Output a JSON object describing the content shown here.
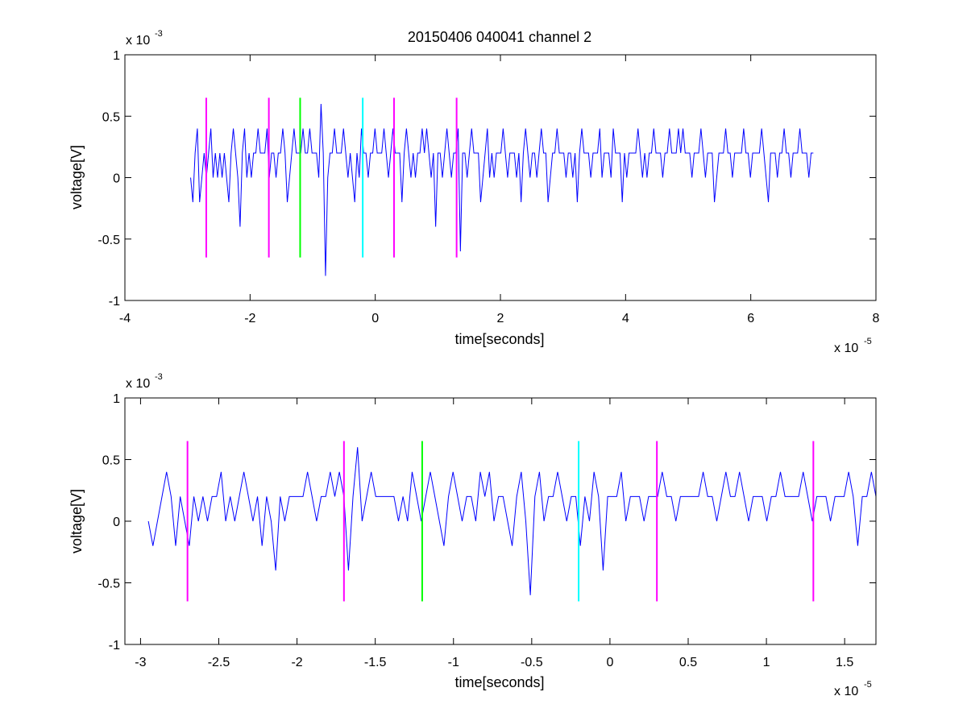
{
  "chart_data": [
    {
      "type": "line",
      "title": "20150406 040041 channel 2",
      "xlabel": "time[seconds]",
      "ylabel": "voltage[V]",
      "x_multiplier": "x 10",
      "x_exponent": "-5",
      "y_multiplier": "x 10",
      "y_exponent": "-3",
      "xlim": [
        -4,
        8
      ],
      "ylim": [
        -1,
        1
      ],
      "xticks": [
        "-4",
        "-2",
        "0",
        "2",
        "4",
        "6",
        "8"
      ],
      "yticks": [
        "-1",
        "-0.5",
        "0",
        "0.5",
        "1"
      ],
      "grid": false,
      "signal": {
        "color": "#0000ff",
        "x_start": -2.95,
        "x_end": 7.0
      },
      "markers": [
        {
          "x": -2.7,
          "ymin": -0.65,
          "ymax": 0.65,
          "color": "#ff00ff"
        },
        {
          "x": -1.7,
          "ymin": -0.65,
          "ymax": 0.65,
          "color": "#ff00ff"
        },
        {
          "x": -1.2,
          "ymin": -0.65,
          "ymax": 0.65,
          "color": "#00ff00"
        },
        {
          "x": -0.2,
          "ymin": -0.65,
          "ymax": 0.65,
          "color": "#00ffff"
        },
        {
          "x": 0.3,
          "ymin": -0.65,
          "ymax": 0.65,
          "color": "#ff00ff"
        },
        {
          "x": 1.3,
          "ymin": -0.65,
          "ymax": 0.65,
          "color": "#ff00ff"
        }
      ],
      "values": [
        0,
        -0.2,
        0.2,
        0.4,
        -0.2,
        0,
        0.2,
        0,
        0.2,
        0.4,
        0,
        0.2,
        0,
        0.2,
        0,
        0.2,
        0,
        -0.2,
        0.2,
        0.4,
        0.2,
        0,
        -0.4,
        0.2,
        0.4,
        0,
        0.2,
        0,
        0.2,
        0.2,
        0.4,
        0.2,
        0.2,
        0.2,
        0.4,
        0,
        0.2,
        0.2,
        0,
        0.2,
        0.2,
        0.4,
        0.2,
        -0.2,
        0,
        0.2,
        0.4,
        0.2,
        0.2,
        0.2,
        0.4,
        0.2,
        0.2,
        0.4,
        0.2,
        0.2,
        0.2,
        0,
        0.6,
        0.2,
        -0.8,
        0,
        0.2,
        0.2,
        0.4,
        0.2,
        0.2,
        0.2,
        0.4,
        0.2,
        0,
        0.2,
        0,
        -0.2,
        0.2,
        0,
        0.4,
        0.2,
        0.2,
        0,
        0.2,
        0.2,
        0.4,
        0.2,
        0.2,
        0.2,
        0.4,
        0.2,
        0,
        0.2,
        0.4,
        0.2,
        0.2,
        0.2,
        -0.2,
        0.2,
        0.4,
        0.2,
        0,
        0.2,
        0,
        0.2,
        0.2,
        0.4,
        0.2,
        0.4,
        0.2,
        0,
        0.2,
        -0.4,
        0.2,
        0.2,
        0,
        0.2,
        0.4,
        0.2,
        0,
        0.2,
        0.2,
        0.4,
        -0.6,
        0.2,
        0.2,
        0,
        0.2,
        0.4,
        0.2,
        0.2,
        0.2,
        -0.2,
        0,
        0.2,
        0.4,
        0,
        0.2,
        0,
        0.2,
        0.2,
        0.2,
        0.4,
        0.2,
        0,
        0.2,
        0.2,
        0.2,
        0,
        0.2,
        -0.2,
        0.2,
        0.4,
        0.2,
        0,
        0.2,
        0.2,
        0,
        0.2,
        0.4,
        0.2,
        0.2,
        -0.2,
        0,
        0.2,
        0.2,
        0.4,
        0.2,
        0.2,
        0.2,
        0,
        0.2,
        0.2,
        0,
        0.2,
        -0.2,
        0.2,
        0.4,
        0.2,
        0.2,
        0.2,
        0,
        0.2,
        0.2,
        0.2,
        0.4,
        0,
        0.2,
        0.2,
        0.2,
        0,
        0.4,
        0.2,
        0.2,
        0.2,
        -0.2,
        0.2,
        0,
        0.2,
        0.2,
        0.2,
        0.2,
        0.4,
        0.2,
        0,
        0.2,
        0,
        0.2,
        0.2,
        0.4,
        0.2,
        0.2,
        0.2,
        0,
        0.2,
        0.2,
        0.4,
        0.2,
        0.2,
        0.2,
        0.4,
        0.2,
        0.4,
        0.2,
        0.2,
        0.2,
        0,
        0.2,
        0.2,
        0.2,
        0.4,
        0.2,
        0,
        0.2,
        0.2,
        0.2,
        -0.2,
        0,
        0.2,
        0.2,
        0.2,
        0.4,
        0.2,
        0.2,
        0,
        0.2,
        0.2,
        0.2,
        0.2,
        0.4,
        0.2,
        0.2,
        0,
        0.2,
        0.2,
        0.2,
        0.2,
        0.4,
        0.2,
        0,
        -0.2,
        0.2,
        0.2,
        0.2,
        0,
        0.2,
        0.2,
        0.4,
        0.2,
        0.2,
        0,
        0.2,
        0.2,
        0.2,
        0.4,
        0.2,
        0.2,
        0.2,
        0,
        0.2,
        0.2
      ]
    },
    {
      "type": "line",
      "title": "",
      "xlabel": "time[seconds]",
      "ylabel": "voltage[V]",
      "x_multiplier": "x 10",
      "x_exponent": "-5",
      "y_multiplier": "x 10",
      "y_exponent": "-3",
      "xlim": [
        -3.1,
        1.7
      ],
      "ylim": [
        -1,
        1
      ],
      "xticks": [
        "-3",
        "-2.5",
        "-2",
        "-1.5",
        "-1",
        "-0.5",
        "0",
        "0.5",
        "1",
        "1.5"
      ],
      "xtick_values": [
        -3,
        -2.5,
        -2,
        -1.5,
        -1,
        -0.5,
        0,
        0.5,
        1,
        1.5
      ],
      "yticks": [
        "-1",
        "-0.5",
        "0",
        "0.5",
        "1"
      ],
      "grid": false,
      "signal": {
        "color": "#0000ff",
        "x_start": -2.95,
        "x_end": 1.7
      },
      "markers": [
        {
          "x": -2.7,
          "ymin": -0.65,
          "ymax": 0.65,
          "color": "#ff00ff"
        },
        {
          "x": -1.7,
          "ymin": -0.65,
          "ymax": 0.65,
          "color": "#ff00ff"
        },
        {
          "x": -1.2,
          "ymin": -0.65,
          "ymax": 0.65,
          "color": "#00ff00"
        },
        {
          "x": -0.2,
          "ymin": -0.65,
          "ymax": 0.65,
          "color": "#00ffff"
        },
        {
          "x": 0.3,
          "ymin": -0.65,
          "ymax": 0.65,
          "color": "#ff00ff"
        },
        {
          "x": 1.3,
          "ymin": -0.65,
          "ymax": 0.65,
          "color": "#ff00ff"
        }
      ],
      "values": [
        0,
        -0.2,
        0,
        0.2,
        0.4,
        0.2,
        -0.2,
        0.2,
        0,
        -0.2,
        0.2,
        0,
        0.2,
        0,
        0.2,
        0.2,
        0.4,
        0,
        0.2,
        0,
        0.2,
        0.4,
        0.2,
        0,
        0.2,
        -0.2,
        0.2,
        0,
        -0.4,
        0.2,
        0,
        0.2,
        0.2,
        0.2,
        0.2,
        0.4,
        0.2,
        0,
        0.2,
        0.2,
        0.4,
        0.2,
        0.4,
        0.2,
        -0.4,
        0.2,
        0.6,
        0,
        0.2,
        0.4,
        0.2,
        0.2,
        0.2,
        0.2,
        0.2,
        0,
        0.2,
        0,
        0.4,
        0.2,
        0,
        0.2,
        0.4,
        0.2,
        0,
        -0.2,
        0.2,
        0.4,
        0.2,
        0,
        0.2,
        0.2,
        0,
        0.4,
        0.2,
        0.4,
        0,
        0.2,
        0.2,
        0,
        -0.2,
        0.2,
        0.4,
        0,
        -0.6,
        0.2,
        0.4,
        0,
        0.2,
        0.2,
        0.4,
        0.2,
        0,
        0.2,
        0.2,
        -0.2,
        0.2,
        0,
        0.4,
        0.2,
        -0.4,
        0.2,
        0.2,
        0.2,
        0.4,
        0,
        0.2,
        0.2,
        0.2,
        0,
        0.2,
        0.2,
        0.2,
        0.4,
        0.2,
        0.2,
        0,
        0.2,
        0.2,
        0.2,
        0.2,
        0.2,
        0.4,
        0.2,
        0.2,
        0,
        0.2,
        0.4,
        0.2,
        0.2,
        0.4,
        0.2,
        0,
        0.2,
        0.2,
        0.2,
        0,
        0.2,
        0.2,
        0.4,
        0.2,
        0.2,
        0.2,
        0.2,
        0.4,
        0.2,
        0,
        0.2,
        0.2,
        0.2,
        0,
        0.2,
        0.2,
        0.2,
        0.4,
        0.2,
        -0.2,
        0.2,
        0.2,
        0.4,
        0.2
      ]
    }
  ]
}
